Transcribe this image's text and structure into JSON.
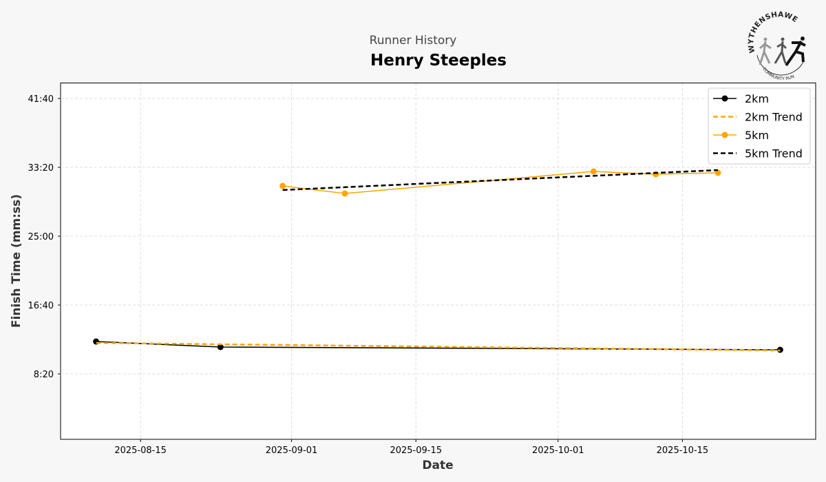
{
  "header": {
    "subtitle": "Runner History",
    "title": "Henry Steeples"
  },
  "logo": {
    "text_top": "WYTHENSHAWE",
    "text_bottom": "COMMUNITY RUN"
  },
  "colors": {
    "black": "#000000",
    "orange": "#ffa500"
  },
  "chart_data": {
    "type": "line",
    "title": "Henry Steeples",
    "subtitle": "Runner History",
    "xlabel": "Date",
    "ylabel": "Finish Time (mm:ss)",
    "xlim": [
      "2025-08-06",
      "2025-10-30"
    ],
    "ylim_seconds": [
      25,
      2610
    ],
    "xticks": [
      "2025-08-15",
      "2025-09-01",
      "2025-09-15",
      "2025-10-01",
      "2025-10-15"
    ],
    "yticks": [
      {
        "s": 500,
        "label": "8:20"
      },
      {
        "s": 1000,
        "label": "16:40"
      },
      {
        "s": 1500,
        "label": "25:00"
      },
      {
        "s": 2000,
        "label": "33:20"
      },
      {
        "s": 2500,
        "label": "41:40"
      }
    ],
    "grid": true,
    "legend_position": "top-right",
    "series": [
      {
        "name": "2km",
        "color": "#000000",
        "dash": false,
        "markers": true,
        "points": [
          {
            "date": "2025-08-10",
            "time": "12:15"
          },
          {
            "date": "2025-08-24",
            "time": "11:35"
          },
          {
            "date": "2025-10-26",
            "time": "11:15"
          }
        ]
      },
      {
        "name": "2km Trend",
        "color": "#ffa500",
        "dash": true,
        "markers": false,
        "points": [
          {
            "date": "2025-08-10",
            "time": "12:05"
          },
          {
            "date": "2025-10-26",
            "time": "11:10"
          }
        ]
      },
      {
        "name": "5km",
        "color": "#ffa500",
        "dash": false,
        "markers": true,
        "points": [
          {
            "date": "2025-08-31",
            "time": "31:05"
          },
          {
            "date": "2025-09-07",
            "time": "30:10"
          },
          {
            "date": "2025-10-05",
            "time": "32:50"
          },
          {
            "date": "2025-10-12",
            "time": "32:30"
          },
          {
            "date": "2025-10-19",
            "time": "32:40"
          }
        ]
      },
      {
        "name": "5km Trend",
        "color": "#000000",
        "dash": true,
        "markers": false,
        "points": [
          {
            "date": "2025-08-31",
            "time": "30:35"
          },
          {
            "date": "2025-10-19",
            "time": "33:00"
          }
        ]
      }
    ]
  }
}
